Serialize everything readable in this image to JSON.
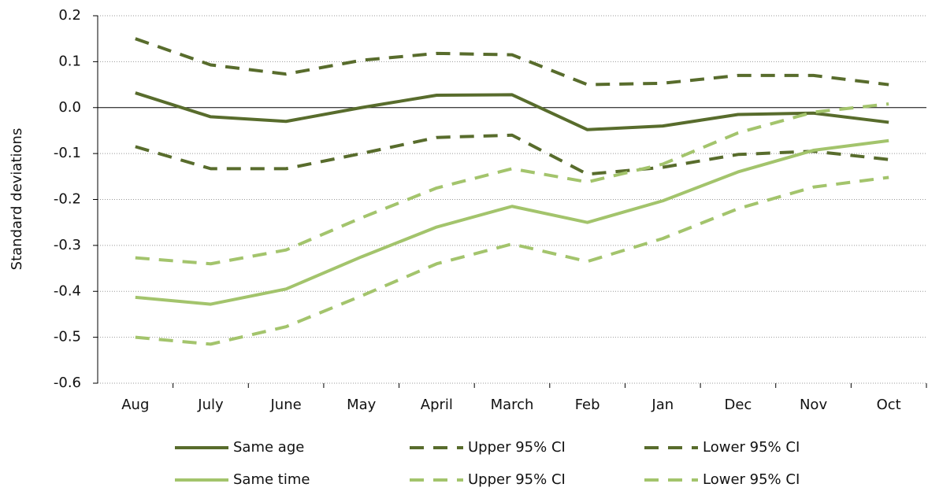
{
  "chart_data": {
    "type": "line",
    "y_label": "Standard deviations",
    "categories": [
      "Aug",
      "July",
      "June",
      "May",
      "April",
      "March",
      "Feb",
      "Jan",
      "Dec",
      "Nov",
      "Oct"
    ],
    "ylim": [
      -0.6,
      0.2
    ],
    "yticks": [
      0.2,
      0.1,
      {
        "value": 0,
        "label": "0.0"
      },
      -0.1,
      -0.2,
      -0.3,
      -0.4,
      -0.5,
      -0.6
    ],
    "grid": true,
    "series": [
      {
        "name": "Same age",
        "color": "#586c2c",
        "dashed": false,
        "values": [
          0.032,
          -0.02,
          -0.03,
          0.0,
          0.027,
          0.028,
          -0.048,
          -0.04,
          -0.015,
          -0.012,
          -0.032
        ]
      },
      {
        "name": "Upper 95% CI",
        "color": "#586c2c",
        "dashed": true,
        "values": [
          0.15,
          0.093,
          0.073,
          0.103,
          0.118,
          0.115,
          0.05,
          0.053,
          0.07,
          0.07,
          0.05
        ]
      },
      {
        "name": "Lower 95% CI",
        "color": "#586c2c",
        "dashed": true,
        "values": [
          -0.085,
          -0.133,
          -0.133,
          -0.1,
          -0.065,
          -0.06,
          -0.145,
          -0.13,
          -0.102,
          -0.095,
          -0.113
        ]
      },
      {
        "name": "Same time",
        "color": "#a3c46c",
        "dashed": false,
        "values": [
          -0.413,
          -0.428,
          -0.395,
          -0.325,
          -0.26,
          -0.215,
          -0.25,
          -0.203,
          -0.14,
          -0.093,
          -0.072
        ]
      },
      {
        "name": "Upper 95% CI",
        "color": "#a3c46c",
        "dashed": true,
        "values": [
          -0.327,
          -0.34,
          -0.31,
          -0.24,
          -0.175,
          -0.133,
          -0.162,
          -0.123,
          -0.055,
          -0.01,
          0.008
        ]
      },
      {
        "name": "Lower 95% CI",
        "color": "#a3c46c",
        "dashed": true,
        "values": [
          -0.5,
          -0.515,
          -0.477,
          -0.41,
          -0.34,
          -0.297,
          -0.335,
          -0.285,
          -0.22,
          -0.173,
          -0.152
        ]
      }
    ]
  }
}
